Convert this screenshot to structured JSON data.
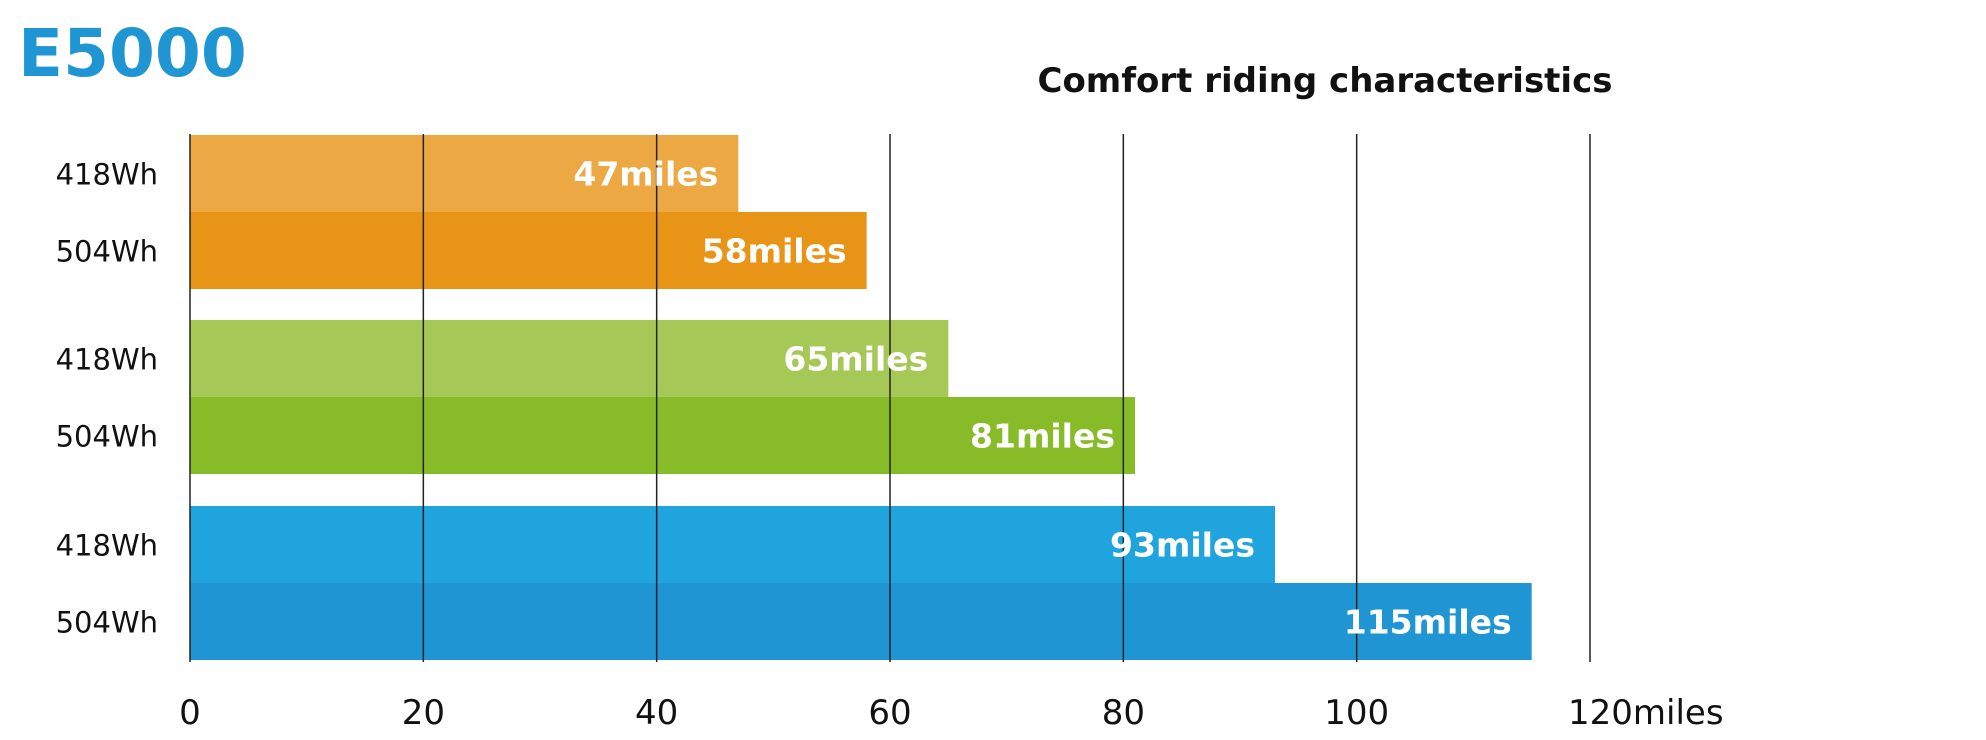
{
  "brand_title": "E5000",
  "colors": {
    "brand": "#1f96d3",
    "grid": "#222222",
    "label_text": "#ffffff",
    "text": "#111111"
  },
  "chart_data": {
    "type": "bar",
    "orientation": "horizontal",
    "title": "Comfort riding characteristics",
    "xlim": [
      0,
      120
    ],
    "x_ticks": [
      0,
      20,
      40,
      60,
      80,
      100,
      120
    ],
    "x_tick_labels": [
      "0",
      "20",
      "40",
      "60",
      "80",
      "100",
      "120miles"
    ],
    "grid": "vertical",
    "bars": [
      {
        "category": "418Wh",
        "value": 47,
        "label": "47miles",
        "color": "#eba843"
      },
      {
        "category": "504Wh",
        "value": 58,
        "label": "58miles",
        "color": "#e89416"
      },
      {
        "category": "418Wh",
        "value": 65,
        "label": "65miles",
        "color": "#a6c857"
      },
      {
        "category": "504Wh",
        "value": 81,
        "label": "81miles",
        "color": "#88bb28"
      },
      {
        "category": "418Wh",
        "value": 93,
        "label": "93miles",
        "color": "#20a4dd"
      },
      {
        "category": "504Wh",
        "value": 115,
        "label": "115miles",
        "color": "#1f96d3"
      }
    ]
  }
}
